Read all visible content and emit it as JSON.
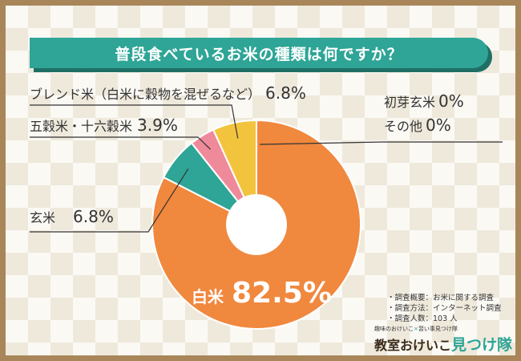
{
  "title": "普段食べているお米の種類は何ですか？",
  "chart_data": {
    "type": "pie",
    "donut": true,
    "slices": [
      {
        "name": "白米",
        "value": 82.5,
        "display": "82.5%",
        "color": "#f0883e"
      },
      {
        "name": "玄米",
        "value": 6.8,
        "display": "6.8%",
        "color": "#2ea596"
      },
      {
        "name": "五穀米・十六穀米",
        "value": 3.9,
        "display": "3.9%",
        "color": "#ef8a9a"
      },
      {
        "name": "ブレンド米（白米に穀物を混ぜるなど）",
        "value": 6.8,
        "display": "6.8%",
        "color": "#f2c43e"
      },
      {
        "name": "初芽玄米",
        "value": 0,
        "display": "0%",
        "color": "#cccccc"
      },
      {
        "name": "その他",
        "value": 0,
        "display": "0%",
        "color": "#cccccc"
      }
    ]
  },
  "notes": [
    "・調査概要：お米に関する調査",
    "・調査方法：インターネット調査",
    "・調査人数：103 人"
  ],
  "logo": {
    "small_left": "趣味のおけいこ",
    "small_x": "×",
    "small_right": "習い事見つけ隊",
    "main_left": "教室おけいこ",
    "main_right": "見つけ隊"
  }
}
